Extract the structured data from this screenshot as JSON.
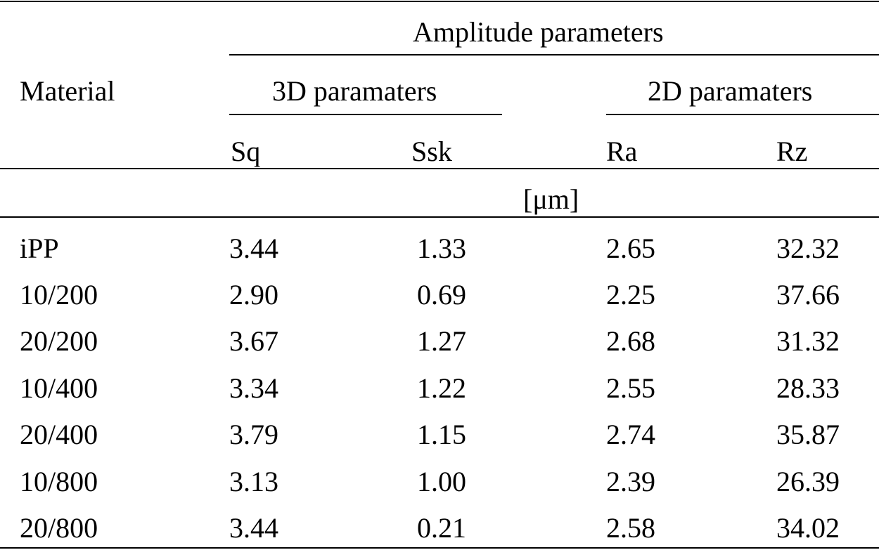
{
  "table": {
    "header": {
      "material": "Material",
      "amplitude_group": "Amplitude parameters",
      "group_3d": "3D paramaters",
      "group_2d": "2D paramaters",
      "columns": [
        "Sq",
        "Ssk",
        "Ra",
        "Rz"
      ],
      "unit": "[μm]"
    },
    "rows": [
      {
        "material": "iPP",
        "Sq": "3.44",
        "Ssk": "1.33",
        "Ra": "2.65",
        "Rz": "32.32"
      },
      {
        "material": "10/200",
        "Sq": "2.90",
        "Ssk": "0.69",
        "Ra": "2.25",
        "Rz": "37.66"
      },
      {
        "material": "20/200",
        "Sq": "3.67",
        "Ssk": "1.27",
        "Ra": "2.68",
        "Rz": "31.32"
      },
      {
        "material": "10/400",
        "Sq": "3.34",
        "Ssk": "1.22",
        "Ra": "2.55",
        "Rz": "28.33"
      },
      {
        "material": "20/400",
        "Sq": "3.79",
        "Ssk": "1.15",
        "Ra": "2.74",
        "Rz": "35.87"
      },
      {
        "material": "10/800",
        "Sq": "3.13",
        "Ssk": "1.00",
        "Ra": "2.39",
        "Rz": "26.39"
      },
      {
        "material": "20/800",
        "Sq": "3.44",
        "Ssk": "0.21",
        "Ra": "2.58",
        "Rz": "34.02"
      }
    ]
  }
}
